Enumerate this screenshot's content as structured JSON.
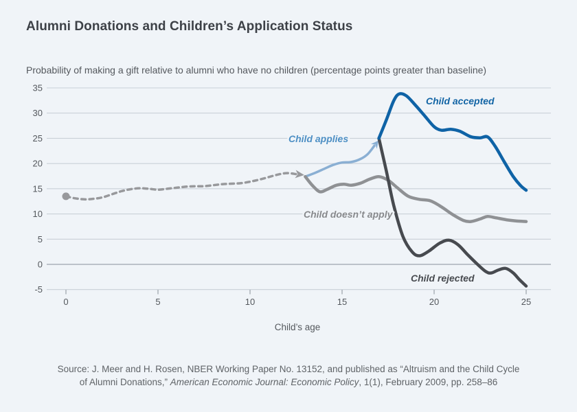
{
  "chart_data": {
    "type": "line",
    "title": "Alumni Donations and Children’s Application Status",
    "subtitle": "Probability of making a gift relative to alumni who have no children (percentage points greater than baseline)",
    "xlabel": "Child’s age",
    "grid": true,
    "x_axis": {
      "ticks": [
        0,
        5,
        10,
        15,
        20,
        25
      ],
      "range": [
        -1,
        26.3
      ]
    },
    "y_axis": {
      "ticks": [
        35,
        30,
        25,
        20,
        15,
        10,
        5,
        0,
        -5
      ],
      "range": [
        -5,
        35
      ]
    },
    "series": [
      {
        "id": "pre-application-dashed",
        "label": "",
        "color": "#98999c",
        "width": 3.5,
        "style": "dashed",
        "marker_start": "dot",
        "arrow_end": true,
        "arrow_len": 12,
        "arrow_halfwidth": 6,
        "points": [
          [
            0,
            13.5
          ],
          [
            0.5,
            13.1
          ],
          [
            1,
            12.9
          ],
          [
            1.5,
            13.0
          ],
          [
            2,
            13.3
          ],
          [
            2.5,
            13.9
          ],
          [
            3,
            14.5
          ],
          [
            3.5,
            14.9
          ],
          [
            4,
            15.1
          ],
          [
            4.5,
            15.0
          ],
          [
            5,
            14.8
          ],
          [
            5.5,
            15.0
          ],
          [
            6,
            15.2
          ],
          [
            6.5,
            15.4
          ],
          [
            7,
            15.5
          ],
          [
            7.5,
            15.5
          ],
          [
            8,
            15.7
          ],
          [
            8.5,
            15.9
          ],
          [
            9,
            16.0
          ],
          [
            9.5,
            16.1
          ],
          [
            10,
            16.4
          ],
          [
            10.5,
            16.8
          ],
          [
            11,
            17.3
          ],
          [
            11.5,
            17.8
          ],
          [
            12,
            18.1
          ],
          [
            12.5,
            17.9
          ]
        ]
      },
      {
        "id": "child-applies",
        "label": "Child applies",
        "label_color": "#4d8fc4",
        "color": "#8aafd3",
        "width": 3.5,
        "style": "solid",
        "arrow_end": true,
        "arrow_len": 10,
        "arrow_halfwidth": 5.5,
        "points": [
          [
            13,
            17.4
          ],
          [
            13.5,
            18.1
          ],
          [
            14,
            18.9
          ],
          [
            14.5,
            19.7
          ],
          [
            15,
            20.2
          ],
          [
            15.5,
            20.3
          ],
          [
            16,
            20.9
          ],
          [
            16.4,
            21.9
          ],
          [
            16.75,
            23.5
          ]
        ]
      },
      {
        "id": "child-doesnt-apply",
        "label": "Child doesn’t apply",
        "label_color": "#87898c",
        "color": "#8f9194",
        "width": 4.5,
        "style": "solid",
        "points": [
          [
            13,
            17.4
          ],
          [
            13.4,
            15.6
          ],
          [
            13.8,
            14.4
          ],
          [
            14.2,
            14.9
          ],
          [
            14.7,
            15.7
          ],
          [
            15.1,
            15.9
          ],
          [
            15.5,
            15.7
          ],
          [
            16,
            16.1
          ],
          [
            16.5,
            16.9
          ],
          [
            17,
            17.4
          ],
          [
            17.5,
            16.7
          ],
          [
            18,
            15.2
          ],
          [
            18.6,
            13.5
          ],
          [
            19.2,
            12.9
          ],
          [
            19.8,
            12.6
          ],
          [
            20.4,
            11.4
          ],
          [
            21,
            9.9
          ],
          [
            21.6,
            8.7
          ],
          [
            22,
            8.5
          ],
          [
            22.5,
            9.0
          ],
          [
            22.9,
            9.5
          ],
          [
            23.4,
            9.2
          ],
          [
            24,
            8.8
          ],
          [
            24.5,
            8.6
          ],
          [
            25,
            8.5
          ]
        ]
      },
      {
        "id": "child-rejected",
        "label": "Child rejected",
        "label_color": "#474a4f",
        "color": "#474a4f",
        "width": 4.5,
        "style": "solid",
        "points": [
          [
            17,
            25
          ],
          [
            17.4,
            18.6
          ],
          [
            17.8,
            11.8
          ],
          [
            18.3,
            5.6
          ],
          [
            18.8,
            2.5
          ],
          [
            19.2,
            1.7
          ],
          [
            19.7,
            2.6
          ],
          [
            20.3,
            4.2
          ],
          [
            20.8,
            4.8
          ],
          [
            21.3,
            3.9
          ],
          [
            21.8,
            2.0
          ],
          [
            22.3,
            0.2
          ],
          [
            22.8,
            -1.4
          ],
          [
            23.1,
            -1.7
          ],
          [
            23.5,
            -1.1
          ],
          [
            23.9,
            -0.8
          ],
          [
            24.3,
            -1.7
          ],
          [
            24.6,
            -2.9
          ],
          [
            25,
            -4.3
          ]
        ]
      },
      {
        "id": "child-accepted",
        "label": "Child accepted",
        "label_color": "#1365a5",
        "color": "#0f63a6",
        "width": 4.5,
        "style": "solid",
        "points": [
          [
            17,
            25
          ],
          [
            17.4,
            28.6
          ],
          [
            17.8,
            32.4
          ],
          [
            18.1,
            33.8
          ],
          [
            18.5,
            33.4
          ],
          [
            19,
            31.5
          ],
          [
            19.5,
            29.4
          ],
          [
            20,
            27.3
          ],
          [
            20.4,
            26.6
          ],
          [
            20.9,
            26.8
          ],
          [
            21.4,
            26.4
          ],
          [
            22,
            25.3
          ],
          [
            22.5,
            25.1
          ],
          [
            22.9,
            25.3
          ],
          [
            23.3,
            23.5
          ],
          [
            23.8,
            20.4
          ],
          [
            24.3,
            17.4
          ],
          [
            24.7,
            15.6
          ],
          [
            25,
            14.7
          ]
        ]
      }
    ],
    "colors": {
      "background": "#f0f4f8",
      "gridline": "#c9d0d7",
      "zero_line": "#abb2b9",
      "tick": "#9aa1a8"
    }
  },
  "source": {
    "line1": "Source: J. Meer and H. Rosen, NBER Working Paper No. 13152, and published as “Altruism and the Child Cycle",
    "line2_prefix": "of Alumni Donations,” ",
    "line2_italic": "American Economic Journal: Economic Policy",
    "line2_suffix": ", 1(1), February 2009, pp. 258–86"
  }
}
